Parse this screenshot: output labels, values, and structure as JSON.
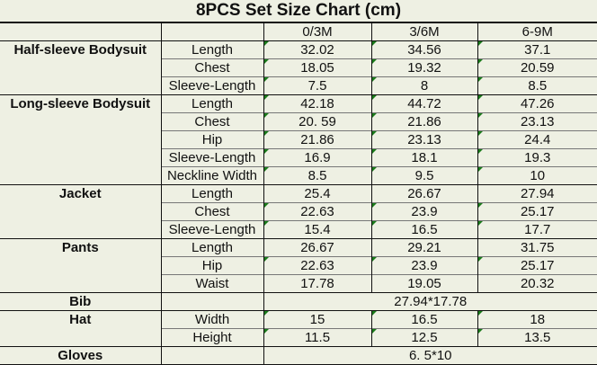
{
  "title": "8PCS Set Size Chart (cm)",
  "sizes": [
    "0/3M",
    "3/6M",
    "6-9M"
  ],
  "colors": {
    "background": "#eef0e3",
    "text_marker": "#1a7a1a"
  },
  "groups": [
    {
      "name": "Half-sleeve Bodysuit",
      "rows": [
        {
          "measure": "Length",
          "values": [
            "32.02",
            "34.56",
            "37.1"
          ],
          "flag": true
        },
        {
          "measure": "Chest",
          "values": [
            "18.05",
            "19.32",
            "20.59"
          ],
          "flag": true
        },
        {
          "measure": "Sleeve-Length",
          "values": [
            "7.5",
            "8",
            "8.5"
          ],
          "flag": true
        }
      ]
    },
    {
      "name": "Long-sleeve Bodysuit",
      "rows": [
        {
          "measure": "Length",
          "values": [
            "42.18",
            "44.72",
            "47.26"
          ],
          "flag": true
        },
        {
          "measure": "Chest",
          "values": [
            "20. 59",
            "21.86",
            "23.13"
          ],
          "flag": true
        },
        {
          "measure": "Hip",
          "values": [
            "21.86",
            "23.13",
            "24.4"
          ],
          "flag": true
        },
        {
          "measure": "Sleeve-Length",
          "values": [
            "16.9",
            "18.1",
            "19.3"
          ],
          "flag": true
        },
        {
          "measure": "Neckline Width",
          "values": [
            "8.5",
            "9.5",
            "10"
          ],
          "flag": true
        }
      ]
    },
    {
      "name": "Jacket",
      "rows": [
        {
          "measure": "Length",
          "values": [
            "25.4",
            "26.67",
            "27.94"
          ],
          "flag": false
        },
        {
          "measure": "Chest",
          "values": [
            "22.63",
            "23.9",
            "25.17"
          ],
          "flag": true
        },
        {
          "measure": "Sleeve-Length",
          "values": [
            "15.4",
            "16.5",
            "17.7"
          ],
          "flag": true
        }
      ]
    },
    {
      "name": "Pants",
      "rows": [
        {
          "measure": "Length",
          "values": [
            "26.67",
            "29.21",
            "31.75"
          ],
          "flag": false
        },
        {
          "measure": "Hip",
          "values": [
            "22.63",
            "23.9",
            "25.17"
          ],
          "flag": true
        },
        {
          "measure": "Waist",
          "values": [
            "17.78",
            "19.05",
            "20.32"
          ],
          "flag": false
        }
      ]
    },
    {
      "name": "Bib",
      "rows": [
        {
          "measure": "",
          "merged": "27.94*17.78"
        }
      ]
    },
    {
      "name": "Hat",
      "rows": [
        {
          "measure": "Width",
          "values": [
            "15",
            "16.5",
            "18"
          ],
          "flag": true
        },
        {
          "measure": "Height",
          "values": [
            "11.5",
            "12.5",
            "13.5"
          ],
          "flag": true
        }
      ]
    },
    {
      "name": "Gloves",
      "rows": [
        {
          "measure": "",
          "merged": "6. 5*10"
        }
      ]
    }
  ]
}
